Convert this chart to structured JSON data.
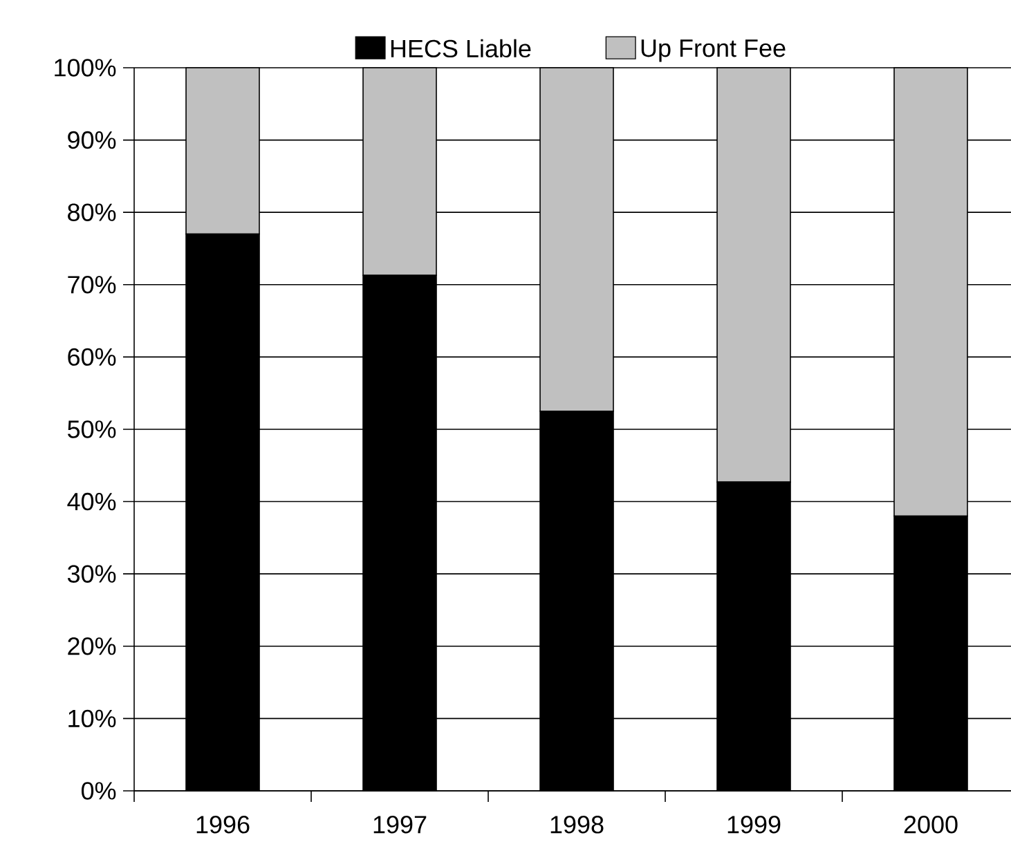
{
  "chart_data": {
    "type": "bar",
    "stacked": true,
    "categories": [
      "1996",
      "1997",
      "1998",
      "1999",
      "2000"
    ],
    "series": [
      {
        "name": "HECS Liable",
        "color": "#000000",
        "values": [
          77.0,
          71.3,
          52.5,
          42.7,
          38.0
        ]
      },
      {
        "name": "Up Front Fee",
        "color": "#c0c0c0",
        "values": [
          23.0,
          28.7,
          47.5,
          57.3,
          62.0
        ]
      }
    ],
    "ylim": [
      0,
      100
    ],
    "yticks": [
      {
        "value": 0,
        "label": "0%"
      },
      {
        "value": 10,
        "label": "10%"
      },
      {
        "value": 20,
        "label": "20%"
      },
      {
        "value": 30,
        "label": "30%"
      },
      {
        "value": 40,
        "label": "40%"
      },
      {
        "value": 50,
        "label": "50%"
      },
      {
        "value": 60,
        "label": "60%"
      },
      {
        "value": 70,
        "label": "70%"
      },
      {
        "value": 80,
        "label": "80%"
      },
      {
        "value": 90,
        "label": "90%"
      },
      {
        "value": 100,
        "label": "100%"
      }
    ],
    "grid": "y",
    "legend": "top"
  }
}
